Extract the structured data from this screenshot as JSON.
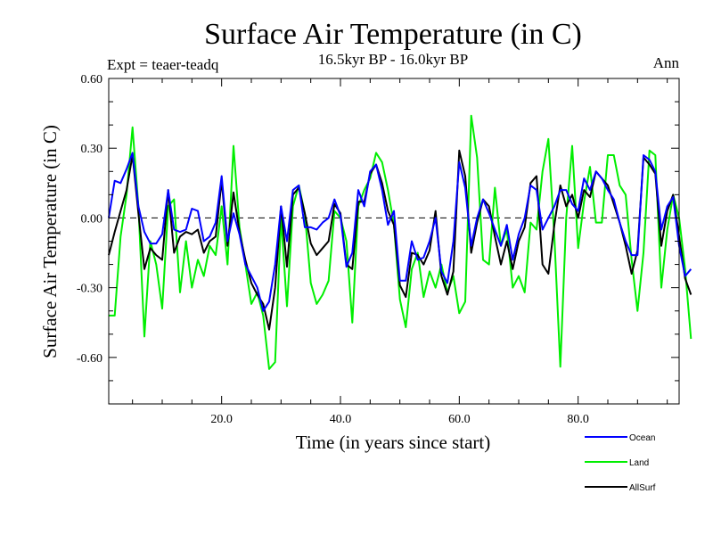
{
  "chart_data": {
    "type": "line",
    "title": "Surface Air Temperature (in C)",
    "subtitle": "16.5kyr BP - 16.0kyr BP",
    "experiment": "Expt = teaer-teadq",
    "season": "Ann",
    "xlabel": "Time (in years since start)",
    "ylabel": "Surface Air Temperature (in C)",
    "xlim": [
      1,
      97
    ],
    "ylim": [
      -0.8,
      0.6
    ],
    "xticks": [
      20,
      40,
      60,
      80
    ],
    "xtick_labels": [
      "20.0",
      "40.0",
      "60.0",
      "80.0"
    ],
    "yticks": [
      -0.6,
      -0.3,
      0.0,
      0.3,
      0.6
    ],
    "ytick_labels": [
      "-0.60",
      "-0.30",
      "0.00",
      "0.30",
      "0.60"
    ],
    "zero_line": "dashed",
    "grid": false,
    "legend_position": "bottom-right",
    "series": [
      {
        "name": "Ocean",
        "color": "#0000ff",
        "values": [
          0.0,
          0.16,
          0.15,
          0.21,
          0.28,
          0.05,
          -0.06,
          -0.11,
          -0.11,
          -0.07,
          0.12,
          -0.05,
          -0.06,
          -0.05,
          0.04,
          0.03,
          -0.1,
          -0.08,
          -0.02,
          0.18,
          -0.1,
          0.02,
          -0.07,
          -0.2,
          -0.25,
          -0.3,
          -0.4,
          -0.36,
          -0.2,
          0.05,
          -0.1,
          0.12,
          0.14,
          -0.04,
          -0.04,
          -0.05,
          -0.02,
          0.0,
          0.08,
          0.01,
          -0.21,
          -0.15,
          0.12,
          0.05,
          0.2,
          0.23,
          0.12,
          -0.03,
          0.03,
          -0.27,
          -0.27,
          -0.1,
          -0.18,
          -0.17,
          -0.1,
          0.0,
          -0.23,
          -0.28,
          -0.1,
          0.24,
          0.13,
          -0.12,
          0.0,
          0.08,
          0.02,
          -0.05,
          -0.12,
          -0.03,
          -0.18,
          -0.07,
          0.0,
          0.14,
          0.12,
          -0.05,
          0.0,
          0.05,
          0.12,
          0.12,
          0.06,
          0.03,
          0.17,
          0.12,
          0.2,
          0.17,
          0.12,
          0.08,
          -0.02,
          -0.1,
          -0.16,
          -0.16,
          0.27,
          0.25,
          0.2,
          -0.05,
          0.05,
          0.09,
          -0.12,
          -0.25,
          -0.22
        ]
      },
      {
        "name": "Land",
        "color": "#00ee00",
        "values": [
          -0.42,
          -0.42,
          -0.08,
          0.1,
          0.39,
          0.05,
          -0.51,
          -0.1,
          -0.2,
          -0.39,
          0.05,
          0.08,
          -0.32,
          -0.1,
          -0.3,
          -0.18,
          -0.25,
          -0.12,
          -0.16,
          0.05,
          -0.2,
          0.31,
          -0.04,
          -0.2,
          -0.37,
          -0.32,
          -0.42,
          -0.65,
          -0.62,
          0.0,
          -0.38,
          0.05,
          0.14,
          0.02,
          -0.28,
          -0.37,
          -0.33,
          -0.27,
          0.03,
          0.0,
          -0.1,
          -0.45,
          0.05,
          0.12,
          0.17,
          0.28,
          0.24,
          0.12,
          -0.03,
          -0.35,
          -0.47,
          -0.22,
          -0.15,
          -0.34,
          -0.23,
          -0.3,
          -0.2,
          -0.32,
          -0.25,
          -0.41,
          -0.36,
          0.44,
          0.26,
          -0.18,
          -0.2,
          0.13,
          -0.12,
          -0.05,
          -0.3,
          -0.25,
          -0.32,
          -0.02,
          -0.05,
          0.2,
          0.34,
          -0.08,
          -0.64,
          0.0,
          0.31,
          -0.13,
          0.07,
          0.22,
          -0.02,
          -0.02,
          0.27,
          0.27,
          0.14,
          0.1,
          -0.18,
          -0.4,
          -0.15,
          0.29,
          0.27,
          -0.3,
          -0.05,
          0.1,
          0.0,
          -0.22,
          -0.52
        ]
      },
      {
        "name": "AllSurf",
        "color": "#000000",
        "values": [
          -0.16,
          -0.06,
          0.03,
          0.12,
          0.27,
          0.02,
          -0.22,
          -0.13,
          -0.16,
          -0.18,
          0.12,
          -0.15,
          -0.08,
          -0.06,
          -0.07,
          -0.05,
          -0.15,
          -0.1,
          -0.08,
          0.16,
          -0.12,
          0.11,
          -0.06,
          -0.18,
          -0.28,
          -0.33,
          -0.37,
          -0.48,
          -0.3,
          0.05,
          -0.21,
          0.1,
          0.13,
          0.02,
          -0.11,
          -0.16,
          -0.13,
          -0.1,
          0.06,
          0.02,
          -0.2,
          -0.22,
          0.07,
          0.07,
          0.19,
          0.23,
          0.15,
          0.03,
          -0.03,
          -0.29,
          -0.34,
          -0.15,
          -0.16,
          -0.2,
          -0.14,
          0.03,
          -0.25,
          -0.33,
          -0.23,
          0.29,
          0.18,
          -0.15,
          -0.02,
          0.08,
          0.05,
          -0.08,
          -0.2,
          -0.1,
          -0.22,
          -0.1,
          -0.04,
          0.15,
          0.18,
          -0.2,
          -0.24,
          -0.03,
          0.14,
          0.05,
          0.1,
          0.0,
          0.12,
          0.09,
          0.2,
          0.17,
          0.14,
          0.06,
          -0.02,
          -0.12,
          -0.24,
          -0.14,
          0.26,
          0.23,
          0.19,
          -0.12,
          0.03,
          0.1,
          -0.08,
          -0.26,
          -0.33
        ]
      }
    ]
  }
}
